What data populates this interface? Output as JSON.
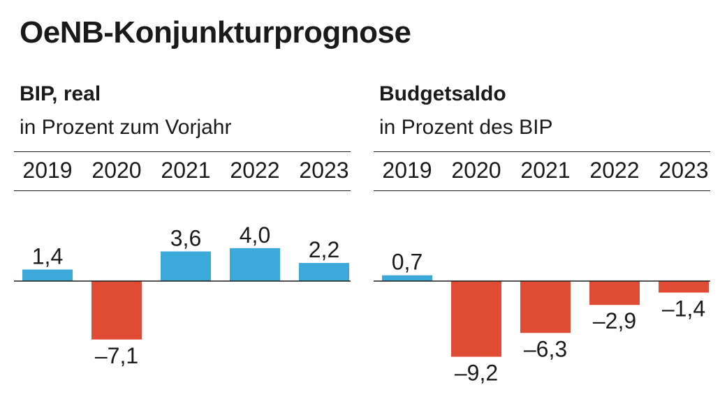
{
  "title": "OeNB-Konjunkturprognose",
  "colors": {
    "positive": "#3ba9d9",
    "negative": "#e04b33",
    "text": "#1a1a1a"
  },
  "chart_data": [
    {
      "type": "bar",
      "title": "BIP, real",
      "subtitle": "in Prozent zum Vorjahr",
      "categories": [
        "2019",
        "2020",
        "2021",
        "2022",
        "2023"
      ],
      "values": [
        1.4,
        -7.1,
        3.6,
        4.0,
        2.2
      ],
      "value_labels": [
        "1,4",
        "–7,1",
        "3,6",
        "4,0",
        "2,2"
      ],
      "ylim": [
        -7.1,
        4.0
      ]
    },
    {
      "type": "bar",
      "title": "Budgetsaldo",
      "subtitle": "in Prozent des BIP",
      "categories": [
        "2019",
        "2020",
        "2021",
        "2022",
        "2023"
      ],
      "values": [
        0.7,
        -9.2,
        -6.3,
        -2.9,
        -1.4
      ],
      "value_labels": [
        "0,7",
        "–9,2",
        "–6,3",
        "–2,9",
        "–1,4"
      ],
      "ylim": [
        -9.2,
        0.7
      ]
    }
  ]
}
